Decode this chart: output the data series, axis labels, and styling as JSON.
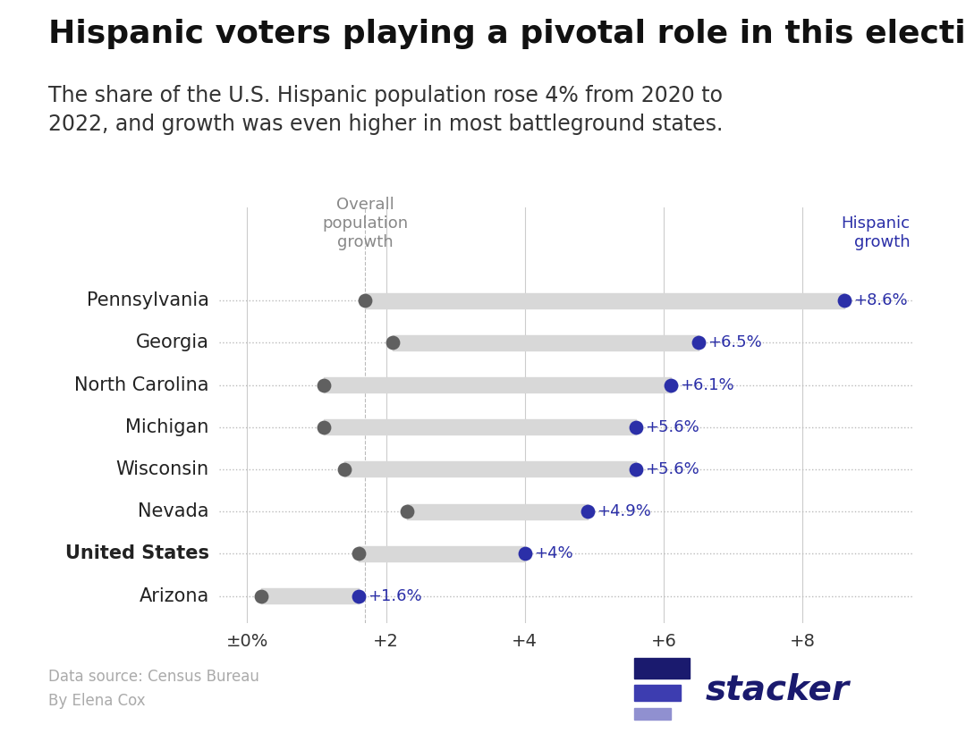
{
  "title": "Hispanic voters playing a pivotal role in this election",
  "subtitle": "The share of the U.S. Hispanic population rose 4% from 2020 to\n2022, and growth was even higher in most battleground states.",
  "states": [
    "Pennsylvania",
    "Georgia",
    "North Carolina",
    "Michigan",
    "Wisconsin",
    "Nevada",
    "United States",
    "Arizona"
  ],
  "overall_growth": [
    1.7,
    2.1,
    1.1,
    1.1,
    1.4,
    2.3,
    1.6,
    0.2
  ],
  "hispanic_growth": [
    8.6,
    6.5,
    6.1,
    5.6,
    5.6,
    4.9,
    4.0,
    1.6
  ],
  "hispanic_labels": [
    "+8.6%",
    "+6.5%",
    "+6.1%",
    "+5.6%",
    "+5.6%",
    "+4.9%",
    "+4%",
    "+1.6%"
  ],
  "bold_states": [
    "United States"
  ],
  "dot_color_overall": "#606060",
  "dot_color_hispanic": "#2b2fa8",
  "line_color": "#cccccc",
  "background_color": "#ffffff",
  "xlim": [
    -0.5,
    9.8
  ],
  "xticks": [
    0,
    2,
    4,
    6,
    8
  ],
  "xtick_labels": [
    "±0%",
    "+2",
    "+4",
    "+6",
    "+8"
  ],
  "header_overall_label": "Overall\npopulation\ngrowth",
  "header_hispanic_label": "Hispanic\ngrowth",
  "header_overall_color": "#888888",
  "header_hispanic_color": "#2b2fa8",
  "source_text": "Data source: Census Bureau\nBy Elena Cox",
  "source_color": "#aaaaaa",
  "title_fontsize": 26,
  "subtitle_fontsize": 17,
  "axis_fontsize": 14,
  "dot_size": 130,
  "vline_x": 1.7,
  "stacker_color": "#1a1a6e"
}
